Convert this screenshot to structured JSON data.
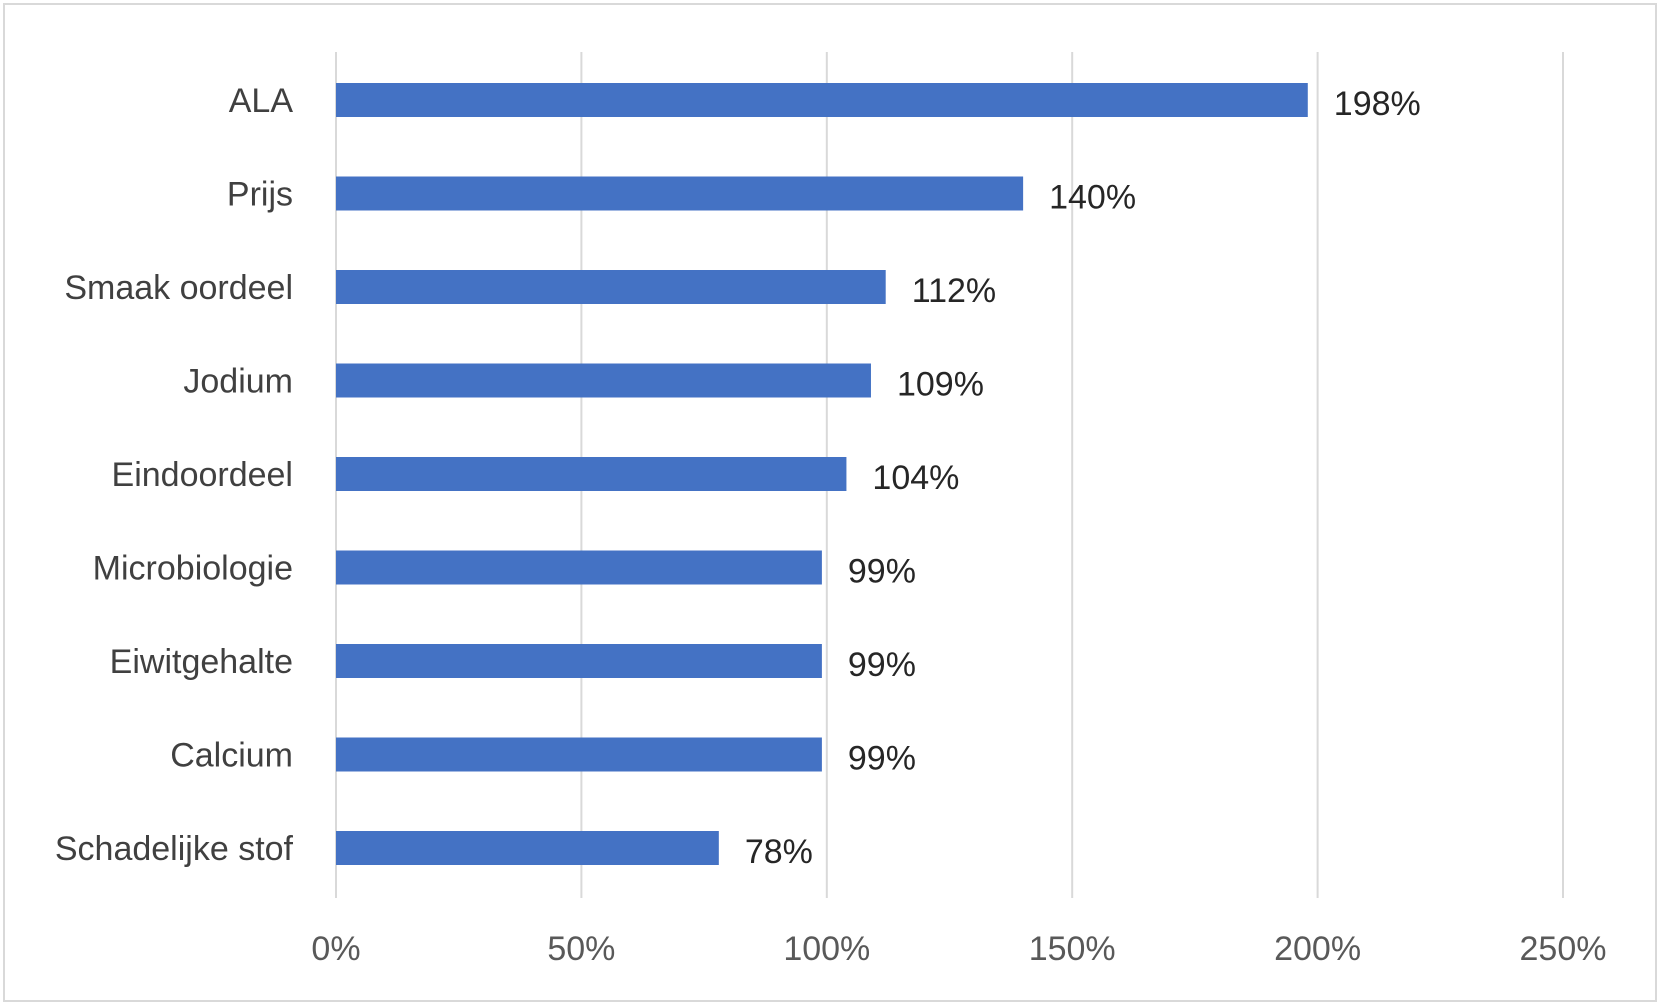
{
  "chart_data": {
    "type": "bar",
    "orientation": "horizontal",
    "title": "",
    "xlabel": "",
    "ylabel": "",
    "categories": [
      "ALA",
      "Prijs",
      "Smaak oordeel",
      "Jodium",
      "Eindoordeel",
      "Microbiologie",
      "Eiwitgehalte",
      "Calcium",
      "Schadelijke stof"
    ],
    "values": [
      198,
      140,
      112,
      109,
      104,
      99,
      99,
      99,
      78
    ],
    "data_labels": [
      "198%",
      "140%",
      "112%",
      "109%",
      "104%",
      "99%",
      "99%",
      "99%",
      "78%"
    ],
    "xlim": [
      0,
      250
    ],
    "x_ticks": [
      0,
      50,
      100,
      150,
      200,
      250
    ],
    "x_tick_labels": [
      "0%",
      "50%",
      "100%",
      "150%",
      "200%",
      "250%"
    ],
    "grid": "vertical",
    "legend": "none",
    "colors": {
      "bar": "#4472c4",
      "grid": "#d9d9d9",
      "frame": "#d9d9d9",
      "category_text": "#404040",
      "data_label_text": "#262626",
      "tick_text": "#595959"
    }
  }
}
